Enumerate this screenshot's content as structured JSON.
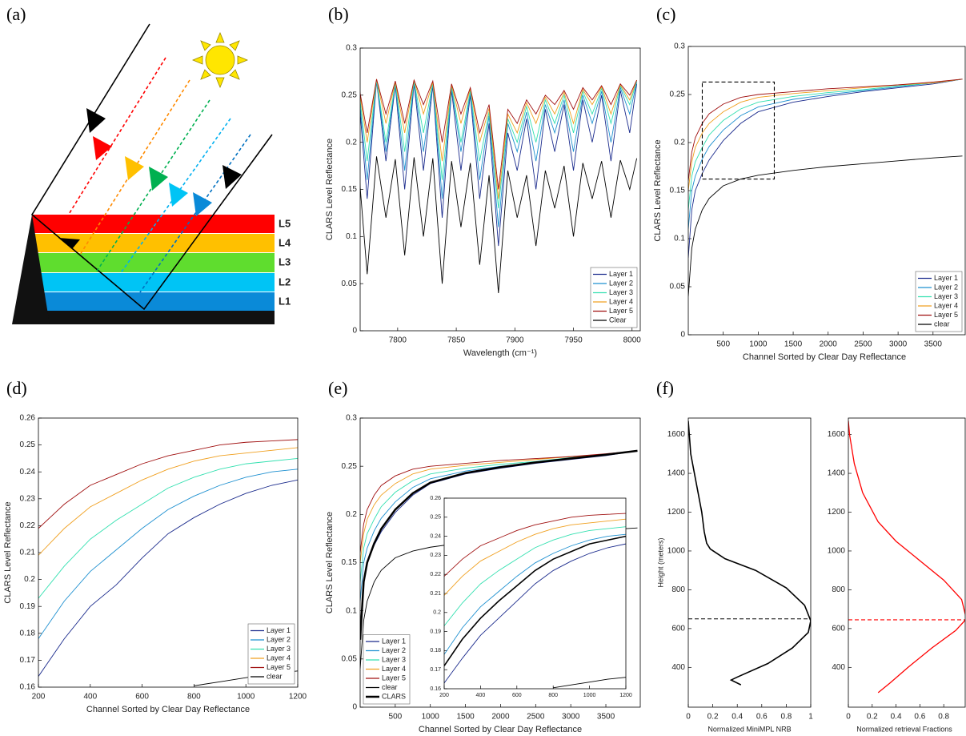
{
  "panel_labels": [
    "(a)",
    "(b)",
    "(c)",
    "(d)",
    "(e)",
    "(f)"
  ],
  "diagram": {
    "layer_labels": [
      "L5",
      "L4",
      "L3",
      "L2",
      "L1"
    ]
  },
  "chart_data": [
    {
      "type": "line",
      "xlabel": "Wavelength (cm⁻¹)",
      "ylabel": "CLARS Level Reflectance",
      "xlim": [
        7768,
        8007
      ],
      "ylim": [
        0,
        0.3
      ],
      "xticks": [
        7800,
        7850,
        7900,
        7950,
        8000
      ],
      "yticks": [
        0,
        0.05,
        0.1,
        0.15,
        0.2,
        0.25,
        0.3
      ],
      "legend": "lower right",
      "x": [
        7766,
        7774,
        7782,
        7790,
        7798,
        7806,
        7814,
        7822,
        7830,
        7838,
        7846,
        7854,
        7862,
        7870,
        7878,
        7886,
        7894,
        7902,
        7910,
        7918,
        7926,
        7934,
        7942,
        7950,
        7958,
        7966,
        7974,
        7982,
        7990,
        7998,
        8004
      ],
      "series": [
        {
          "name": "Layer 1",
          "color": "#1a2a8c",
          "values": [
            0.262,
            0.14,
            0.265,
            0.18,
            0.26,
            0.15,
            0.262,
            0.17,
            0.26,
            0.12,
            0.255,
            0.17,
            0.25,
            0.14,
            0.22,
            0.09,
            0.21,
            0.17,
            0.225,
            0.15,
            0.235,
            0.19,
            0.24,
            0.17,
            0.245,
            0.2,
            0.25,
            0.18,
            0.255,
            0.21,
            0.262
          ]
        },
        {
          "name": "Layer 2",
          "color": "#1e90d0",
          "values": [
            0.264,
            0.16,
            0.266,
            0.19,
            0.262,
            0.17,
            0.264,
            0.19,
            0.262,
            0.14,
            0.258,
            0.19,
            0.253,
            0.16,
            0.228,
            0.11,
            0.22,
            0.19,
            0.232,
            0.18,
            0.24,
            0.21,
            0.245,
            0.19,
            0.25,
            0.22,
            0.254,
            0.2,
            0.258,
            0.23,
            0.264
          ]
        },
        {
          "name": "Layer 3",
          "color": "#33e0b0",
          "values": [
            0.265,
            0.18,
            0.266,
            0.2,
            0.263,
            0.19,
            0.265,
            0.21,
            0.263,
            0.16,
            0.26,
            0.2,
            0.255,
            0.18,
            0.232,
            0.13,
            0.225,
            0.2,
            0.238,
            0.2,
            0.245,
            0.22,
            0.25,
            0.21,
            0.254,
            0.23,
            0.257,
            0.22,
            0.26,
            0.24,
            0.265
          ]
        },
        {
          "name": "Layer 4",
          "color": "#f0a020",
          "values": [
            0.266,
            0.2,
            0.267,
            0.22,
            0.264,
            0.21,
            0.266,
            0.23,
            0.264,
            0.18,
            0.261,
            0.22,
            0.257,
            0.2,
            0.236,
            0.14,
            0.23,
            0.21,
            0.242,
            0.22,
            0.248,
            0.23,
            0.253,
            0.22,
            0.256,
            0.24,
            0.259,
            0.23,
            0.261,
            0.245,
            0.266
          ]
        },
        {
          "name": "Layer 5",
          "color": "#a01010",
          "values": [
            0.266,
            0.21,
            0.267,
            0.23,
            0.265,
            0.22,
            0.266,
            0.24,
            0.265,
            0.2,
            0.262,
            0.23,
            0.258,
            0.21,
            0.24,
            0.15,
            0.235,
            0.22,
            0.245,
            0.23,
            0.25,
            0.24,
            0.255,
            0.235,
            0.258,
            0.245,
            0.26,
            0.24,
            0.262,
            0.25,
            0.266
          ]
        },
        {
          "name": "Clear",
          "color": "#000000",
          "values": [
            0.183,
            0.06,
            0.185,
            0.12,
            0.182,
            0.08,
            0.184,
            0.1,
            0.183,
            0.05,
            0.18,
            0.11,
            0.178,
            0.07,
            0.165,
            0.04,
            0.17,
            0.12,
            0.165,
            0.09,
            0.17,
            0.13,
            0.175,
            0.1,
            0.178,
            0.14,
            0.18,
            0.12,
            0.181,
            0.15,
            0.183
          ]
        }
      ]
    },
    {
      "type": "line",
      "xlabel": "Channel Sorted by Clear Day Reflectance",
      "ylabel": "CLARS Level Reflectance",
      "xlim": [
        0,
        3960
      ],
      "ylim": [
        0,
        0.3
      ],
      "xticks": [
        500,
        1000,
        1500,
        2000,
        2500,
        3000,
        3500
      ],
      "yticks": [
        0,
        0.05,
        0.1,
        0.15,
        0.2,
        0.25,
        0.3
      ],
      "legend": "lower right",
      "zoom_box": {
        "x": [
          200,
          1230
        ],
        "y": [
          0.162,
          0.263
        ]
      },
      "x": [
        0,
        50,
        100,
        200,
        300,
        500,
        750,
        1000,
        1500,
        2000,
        2500,
        3000,
        3500,
        3920
      ],
      "series": [
        {
          "name": "Layer 1",
          "color": "#1a2a8c",
          "values": [
            0.08,
            0.13,
            0.15,
            0.168,
            0.182,
            0.202,
            0.22,
            0.232,
            0.242,
            0.248,
            0.253,
            0.257,
            0.261,
            0.266
          ]
        },
        {
          "name": "Layer 2",
          "color": "#1e90d0",
          "values": [
            0.11,
            0.15,
            0.165,
            0.183,
            0.196,
            0.213,
            0.228,
            0.237,
            0.245,
            0.25,
            0.254,
            0.258,
            0.262,
            0.266
          ]
        },
        {
          "name": "Layer 3",
          "color": "#33e0b0",
          "values": [
            0.13,
            0.165,
            0.18,
            0.195,
            0.208,
            0.223,
            0.235,
            0.242,
            0.248,
            0.252,
            0.255,
            0.259,
            0.262,
            0.266
          ]
        },
        {
          "name": "Layer 4",
          "color": "#f0a020",
          "values": [
            0.15,
            0.18,
            0.195,
            0.21,
            0.22,
            0.232,
            0.242,
            0.247,
            0.251,
            0.254,
            0.257,
            0.26,
            0.262,
            0.266
          ]
        },
        {
          "name": "Layer 5",
          "color": "#a01010",
          "values": [
            0.16,
            0.19,
            0.205,
            0.22,
            0.23,
            0.24,
            0.247,
            0.25,
            0.253,
            0.256,
            0.258,
            0.26,
            0.263,
            0.266
          ]
        },
        {
          "name": "clear",
          "color": "#000000",
          "values": [
            0.04,
            0.09,
            0.11,
            0.13,
            0.142,
            0.155,
            0.162,
            0.166,
            0.171,
            0.175,
            0.178,
            0.181,
            0.184,
            0.186
          ]
        }
      ]
    },
    {
      "type": "line",
      "xlabel": "Channel Sorted by Clear Day Reflectance",
      "ylabel": "CLARS Level Reflectance",
      "xlim": [
        200,
        1200
      ],
      "ylim": [
        0.16,
        0.26
      ],
      "xticks": [
        200,
        400,
        600,
        800,
        1000,
        1200
      ],
      "yticks": [
        0.16,
        0.17,
        0.18,
        0.19,
        0.2,
        0.21,
        0.22,
        0.23,
        0.24,
        0.25,
        0.26
      ],
      "legend": "lower right",
      "x": [
        200,
        300,
        400,
        500,
        600,
        700,
        800,
        900,
        1000,
        1100,
        1200
      ],
      "series": [
        {
          "name": "Layer 1",
          "color": "#1a2a8c",
          "values": [
            0.164,
            0.178,
            0.19,
            0.198,
            0.208,
            0.217,
            0.223,
            0.228,
            0.232,
            0.235,
            0.237
          ]
        },
        {
          "name": "Layer 2",
          "color": "#1e90d0",
          "values": [
            0.178,
            0.192,
            0.203,
            0.211,
            0.219,
            0.226,
            0.231,
            0.235,
            0.238,
            0.24,
            0.241
          ]
        },
        {
          "name": "Layer 3",
          "color": "#33e0b0",
          "values": [
            0.193,
            0.205,
            0.215,
            0.222,
            0.228,
            0.234,
            0.238,
            0.241,
            0.243,
            0.244,
            0.245
          ]
        },
        {
          "name": "Layer 4",
          "color": "#f0a020",
          "values": [
            0.209,
            0.219,
            0.227,
            0.232,
            0.237,
            0.241,
            0.244,
            0.246,
            0.247,
            0.248,
            0.249
          ]
        },
        {
          "name": "Layer 5",
          "color": "#a01010",
          "values": [
            0.219,
            0.228,
            0.235,
            0.239,
            0.243,
            0.246,
            0.248,
            0.25,
            0.251,
            0.2515,
            0.252
          ]
        },
        {
          "name": "clear",
          "color": "#000000",
          "values": [
            null,
            null,
            null,
            null,
            null,
            null,
            0.1605,
            0.162,
            0.1635,
            0.165,
            0.166
          ]
        }
      ]
    },
    {
      "type": "line",
      "xlabel": "Channel Sorted by Clear Day Reflectance",
      "ylabel": "CLARS Level Reflectance",
      "xlim": [
        0,
        3990
      ],
      "ylim": [
        0,
        0.3
      ],
      "xticks": [
        500,
        1000,
        1500,
        2000,
        2500,
        3000,
        3500
      ],
      "yticks": [
        0,
        0.05,
        0.1,
        0.15,
        0.2,
        0.25,
        0.3
      ],
      "legend": "lower left",
      "x": [
        0,
        50,
        100,
        200,
        300,
        500,
        750,
        1000,
        1500,
        2000,
        2500,
        3000,
        3500,
        3950
      ],
      "series": [
        {
          "name": "Layer 1",
          "color": "#1a2a8c",
          "values": [
            0.08,
            0.13,
            0.15,
            0.168,
            0.182,
            0.202,
            0.22,
            0.232,
            0.242,
            0.248,
            0.253,
            0.257,
            0.261,
            0.266
          ]
        },
        {
          "name": "Layer 2",
          "color": "#1e90d0",
          "values": [
            0.11,
            0.15,
            0.165,
            0.183,
            0.196,
            0.213,
            0.228,
            0.237,
            0.245,
            0.25,
            0.254,
            0.258,
            0.262,
            0.266
          ]
        },
        {
          "name": "Layer 3",
          "color": "#33e0b0",
          "values": [
            0.13,
            0.165,
            0.18,
            0.195,
            0.208,
            0.223,
            0.235,
            0.242,
            0.248,
            0.252,
            0.255,
            0.259,
            0.262,
            0.266
          ]
        },
        {
          "name": "Layer 4",
          "color": "#f0a020",
          "values": [
            0.15,
            0.18,
            0.195,
            0.21,
            0.22,
            0.232,
            0.242,
            0.247,
            0.251,
            0.254,
            0.257,
            0.26,
            0.262,
            0.266
          ]
        },
        {
          "name": "Layer 5",
          "color": "#a01010",
          "values": [
            0.16,
            0.19,
            0.205,
            0.22,
            0.23,
            0.24,
            0.247,
            0.25,
            0.253,
            0.256,
            0.258,
            0.26,
            0.263,
            0.266
          ]
        },
        {
          "name": "clear",
          "color": "#000000",
          "values": [
            0.04,
            0.09,
            0.11,
            0.13,
            0.142,
            0.155,
            0.162,
            0.166,
            0.171,
            0.175,
            0.178,
            0.181,
            0.184,
            0.186
          ]
        },
        {
          "name": "CLARS",
          "color": "#000000",
          "line_width": 2.5,
          "values": [
            0.07,
            0.13,
            0.15,
            0.17,
            0.185,
            0.205,
            0.222,
            0.233,
            0.243,
            0.249,
            0.254,
            0.258,
            0.262,
            0.266
          ]
        }
      ]
    },
    {
      "type": "line",
      "inset": true,
      "xlim": [
        200,
        1200
      ],
      "ylim": [
        0.16,
        0.26
      ],
      "xticks": [
        200,
        400,
        600,
        800,
        1000,
        1200
      ],
      "yticks": [
        0.16,
        0.17,
        0.18,
        0.19,
        0.2,
        0.21,
        0.22,
        0.23,
        0.24,
        0.25,
        0.26
      ],
      "x": [
        200,
        300,
        400,
        500,
        600,
        700,
        800,
        900,
        1000,
        1100,
        1200
      ],
      "series": [
        {
          "color": "#1a2a8c",
          "values": [
            0.163,
            0.176,
            0.188,
            0.197,
            0.206,
            0.215,
            0.222,
            0.227,
            0.231,
            0.234,
            0.236
          ]
        },
        {
          "color": "#1e90d0",
          "values": [
            0.178,
            0.192,
            0.203,
            0.211,
            0.219,
            0.226,
            0.231,
            0.235,
            0.238,
            0.24,
            0.241
          ]
        },
        {
          "color": "#33e0b0",
          "values": [
            0.193,
            0.205,
            0.215,
            0.222,
            0.228,
            0.234,
            0.238,
            0.241,
            0.243,
            0.244,
            0.245
          ]
        },
        {
          "color": "#f0a020",
          "values": [
            0.209,
            0.219,
            0.227,
            0.232,
            0.237,
            0.241,
            0.244,
            0.246,
            0.247,
            0.248,
            0.249
          ]
        },
        {
          "color": "#a01010",
          "values": [
            0.219,
            0.228,
            0.235,
            0.239,
            0.243,
            0.246,
            0.248,
            0.25,
            0.251,
            0.2515,
            0.252
          ]
        },
        {
          "color": "#000000",
          "values": [
            null,
            null,
            null,
            null,
            null,
            null,
            0.1605,
            0.162,
            0.1635,
            0.165,
            0.166
          ]
        },
        {
          "color": "#000000",
          "line_width": 1.6,
          "values": [
            0.172,
            0.186,
            0.197,
            0.206,
            0.214,
            0.222,
            0.228,
            0.232,
            0.236,
            0.238,
            0.24
          ]
        }
      ]
    },
    {
      "type": "line",
      "xlabel": "Normalized MiniMPL NRB",
      "ylabel": "Height (meters)",
      "xlim": [
        0,
        1
      ],
      "ylim": [
        195,
        1685
      ],
      "xticks": [
        0,
        0.2,
        0.4,
        0.6,
        0.8,
        1
      ],
      "yticks": [
        400,
        600,
        800,
        1000,
        1200,
        1400,
        1600
      ],
      "hline": {
        "value": 650,
        "color": "#000000"
      },
      "x": [
        0.43,
        0.35,
        0.4,
        0.65,
        0.85,
        0.98,
        1.0,
        0.95,
        0.8,
        0.55,
        0.3,
        0.18,
        0.15,
        0.13,
        0.11,
        0.08,
        0.05,
        0.02,
        0.0
      ],
      "series": [
        {
          "color": "#000000",
          "line_width": 1.6,
          "values": [
            310,
            335,
            350,
            420,
            500,
            580,
            640,
            720,
            810,
            900,
            960,
            1010,
            1040,
            1100,
            1200,
            1300,
            1400,
            1500,
            1670
          ]
        }
      ]
    },
    {
      "type": "line",
      "xlabel": "Normalized retrieval Fractions",
      "xlim": [
        0,
        0.98
      ],
      "ylim": [
        195,
        1685
      ],
      "xticks": [
        0,
        0.2,
        0.4,
        0.6,
        0.8
      ],
      "yticks": [
        400,
        600,
        800,
        1000,
        1200,
        1400,
        1600
      ],
      "hline": {
        "value": 645,
        "color": "#ff0000"
      },
      "x": [
        0.25,
        0.35,
        0.5,
        0.7,
        0.9,
        0.99,
        0.95,
        0.8,
        0.6,
        0.4,
        0.25,
        0.12,
        0.05,
        0.01,
        0
      ],
      "series": [
        {
          "color": "#ff0000",
          "line_width": 1.3,
          "values": [
            270,
            320,
            400,
            500,
            590,
            650,
            750,
            850,
            950,
            1050,
            1150,
            1300,
            1450,
            1600,
            1670
          ]
        }
      ]
    }
  ]
}
